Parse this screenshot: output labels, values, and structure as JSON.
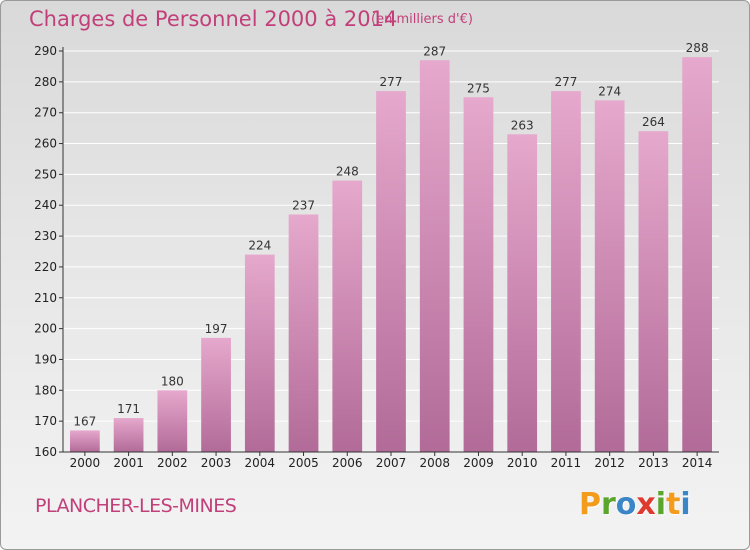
{
  "header": {
    "title": "Charges de Personnel 2000 à 2014",
    "subtitle": "(en milliers d'€)"
  },
  "footer": {
    "city": "PLANCHER-LES-MINES",
    "brand": "Proxiti",
    "brand_colors": [
      "#f39b1b",
      "#5aa62d",
      "#3b86c6",
      "#e03a2f",
      "#5aa62d",
      "#f39b1b",
      "#3b86c6"
    ]
  },
  "colors": {
    "bar_top": "#e6a8cc",
    "bar_bottom": "#b26b98",
    "accent": "#c2407a",
    "grid": "#ffffff"
  },
  "chart_data": {
    "type": "bar",
    "title": "Charges de Personnel 2000 à 2014",
    "subtitle": "(en milliers d'€)",
    "categories": [
      "2000",
      "2001",
      "2002",
      "2003",
      "2004",
      "2005",
      "2006",
      "2007",
      "2008",
      "2009",
      "2010",
      "2011",
      "2012",
      "2013",
      "2014"
    ],
    "values": [
      167,
      171,
      180,
      197,
      224,
      237,
      248,
      277,
      287,
      275,
      263,
      277,
      274,
      264,
      288
    ],
    "ylim": [
      160,
      290
    ],
    "yticks": [
      160,
      170,
      180,
      190,
      200,
      210,
      220,
      230,
      240,
      250,
      260,
      270,
      280,
      290
    ],
    "grid": true,
    "xlabel": "",
    "ylabel": ""
  }
}
